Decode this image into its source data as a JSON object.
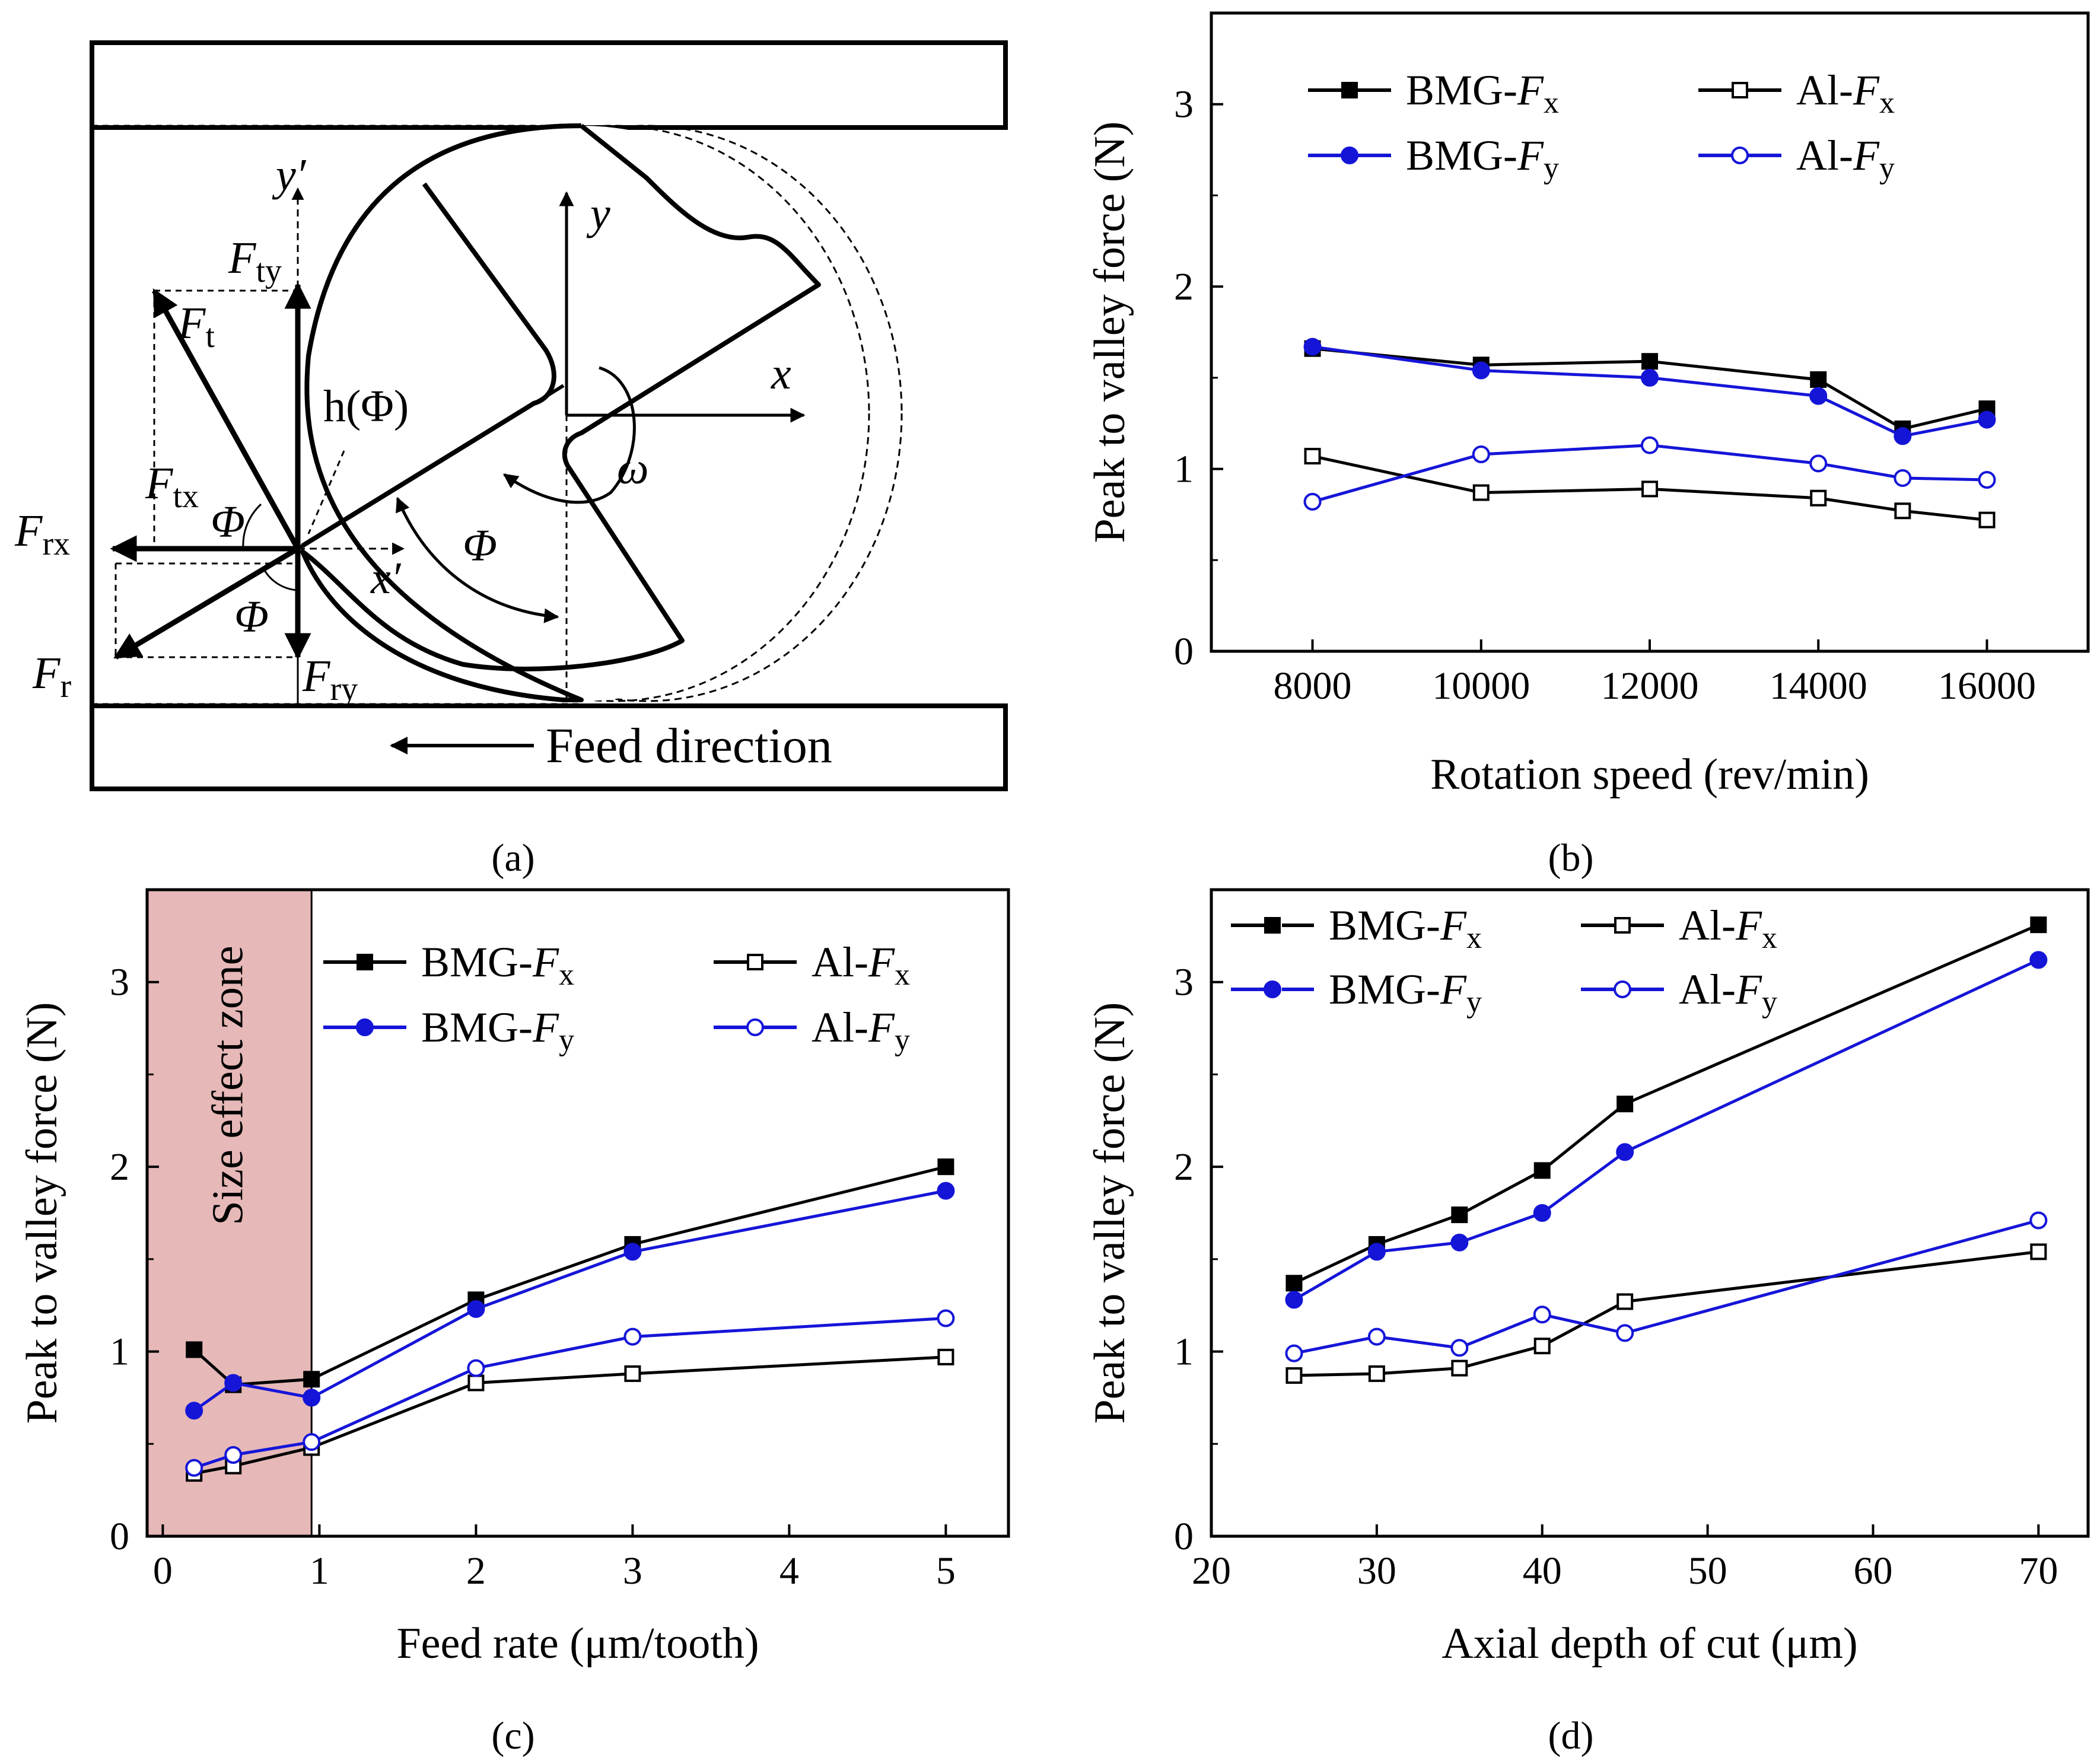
{
  "figure": {
    "captions": {
      "a": "(a)",
      "b": "(b)",
      "c": "(c)",
      "d": "(d)"
    }
  },
  "diagram": {
    "feed_direction": "Feed direction",
    "y": "y",
    "x": "x",
    "y_prime": "y′",
    "x_prime": "x′",
    "omega": "ω",
    "phi": "Φ",
    "h_phi": "h(Φ)",
    "F": "F",
    "sub_t": "t",
    "sub_ty": "ty",
    "sub_tx": "tx",
    "sub_rx": "rx",
    "sub_r": "r",
    "sub_ry": "ry"
  },
  "legend_text": {
    "bmg": "BMG-",
    "al": "Al-",
    "F": "F",
    "x": "x",
    "y": "y"
  },
  "colors": {
    "black_series": "#000000",
    "blue_series": "#1515d8",
    "size_zone": "#e6b8b8"
  },
  "chart_data": [
    {
      "panel": "b",
      "type": "line",
      "xlabel": "Rotation speed (rev/min)",
      "ylabel": "Peak to valley force (N)",
      "xlim": [
        6800,
        17200
      ],
      "ylim": [
        0,
        3.5
      ],
      "xticks": [
        8000,
        10000,
        12000,
        14000,
        16000
      ],
      "yticks": [
        0,
        1,
        2,
        3
      ],
      "x": [
        8000,
        10000,
        12000,
        14000,
        15000,
        16000
      ],
      "series": [
        {
          "name": "BMG-Fx",
          "values": [
            1.66,
            1.57,
            1.59,
            1.49,
            1.22,
            1.33
          ]
        },
        {
          "name": "BMG-Fy",
          "values": [
            1.67,
            1.54,
            1.5,
            1.4,
            1.18,
            1.27
          ]
        },
        {
          "name": "Al-Fx",
          "values": [
            1.07,
            0.87,
            0.89,
            0.84,
            0.77,
            0.72
          ]
        },
        {
          "name": "Al-Fy",
          "values": [
            0.82,
            1.08,
            1.13,
            1.03,
            0.95,
            0.94
          ]
        }
      ]
    },
    {
      "panel": "c",
      "type": "line",
      "xlabel": "Feed rate (μm/tooth)",
      "ylabel": "Peak to valley force (N)",
      "xlim": [
        -0.1,
        5.4
      ],
      "ylim": [
        0,
        3.5
      ],
      "xticks": [
        0,
        1,
        2,
        3,
        4,
        5
      ],
      "yticks": [
        0,
        1,
        2,
        3
      ],
      "x": [
        0.2,
        0.45,
        0.95,
        2,
        3,
        5
      ],
      "shaded_zone": {
        "x_from": -0.1,
        "x_to": 0.95,
        "label": "Size effect zone"
      },
      "series": [
        {
          "name": "BMG-Fx",
          "values": [
            1.01,
            0.82,
            0.85,
            1.28,
            1.58,
            2.0
          ]
        },
        {
          "name": "BMG-Fy",
          "values": [
            0.68,
            0.83,
            0.75,
            1.23,
            1.54,
            1.87
          ]
        },
        {
          "name": "Al-Fx",
          "values": [
            0.34,
            0.38,
            0.48,
            0.83,
            0.88,
            0.97
          ]
        },
        {
          "name": "Al-Fy",
          "values": [
            0.37,
            0.44,
            0.51,
            0.91,
            1.08,
            1.18
          ]
        }
      ]
    },
    {
      "panel": "d",
      "type": "line",
      "xlabel": "Axial depth of cut (μm)",
      "ylabel": "Peak to valley force (N)",
      "xlim": [
        20,
        73
      ],
      "ylim": [
        0,
        3.5
      ],
      "xticks": [
        20,
        30,
        40,
        50,
        60,
        70
      ],
      "yticks": [
        0,
        1,
        2,
        3
      ],
      "x": [
        25,
        30,
        35,
        40,
        45,
        70
      ],
      "series": [
        {
          "name": "BMG-Fx",
          "values": [
            1.37,
            1.58,
            1.74,
            1.98,
            2.34,
            3.31
          ]
        },
        {
          "name": "BMG-Fy",
          "values": [
            1.28,
            1.54,
            1.59,
            1.75,
            2.08,
            3.12
          ]
        },
        {
          "name": "Al-Fx",
          "values": [
            0.87,
            0.88,
            0.91,
            1.03,
            1.27,
            1.54
          ]
        },
        {
          "name": "Al-Fy",
          "values": [
            0.99,
            1.08,
            1.02,
            1.2,
            1.1,
            1.71
          ]
        }
      ]
    }
  ]
}
